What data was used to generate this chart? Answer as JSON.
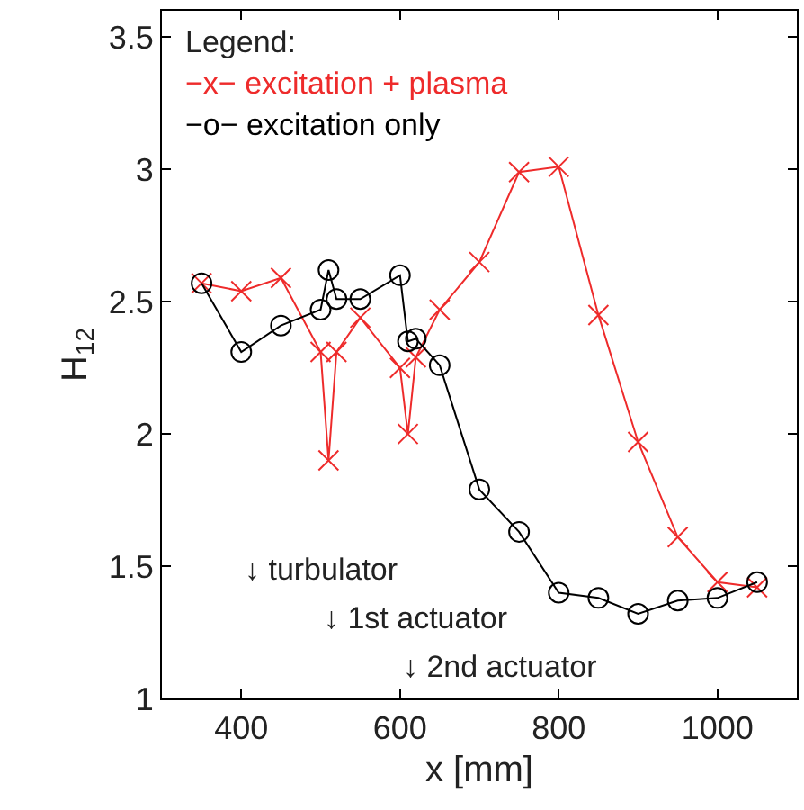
{
  "chart_data": {
    "type": "line",
    "xlabel": "x [mm]",
    "ylabel": "H$_{12}$",
    "legend_title": "Legend:",
    "legend": "top left",
    "series": [
      {
        "name": "−x− excitation + plasma",
        "color": "#ee2b2b",
        "marker": "cross",
        "x": [
          350,
          400,
          450,
          500,
          510,
          520,
          550,
          600,
          610,
          620,
          650,
          700,
          750,
          800,
          850,
          900,
          950,
          1000,
          1050
        ],
        "values": [
          2.57,
          2.54,
          2.59,
          2.31,
          1.9,
          2.31,
          2.44,
          2.25,
          2.0,
          2.29,
          2.47,
          2.65,
          2.99,
          3.01,
          2.45,
          1.97,
          1.61,
          1.44,
          1.42
        ]
      },
      {
        "name": "−o− excitation only",
        "color": "#000000",
        "marker": "circle",
        "x": [
          350,
          400,
          450,
          500,
          510,
          520,
          550,
          600,
          610,
          620,
          650,
          700,
          750,
          800,
          850,
          900,
          950,
          1000,
          1050
        ],
        "values": [
          2.57,
          2.31,
          2.41,
          2.47,
          2.62,
          2.51,
          2.51,
          2.6,
          2.35,
          2.36,
          2.26,
          1.79,
          1.63,
          1.4,
          1.38,
          1.32,
          1.37,
          1.38,
          1.44
        ]
      }
    ],
    "annotations": [
      "↓ turbulator",
      "↓ 1st actuator",
      "↓ 2nd actuator"
    ],
    "xlim": [
      300,
      1100
    ],
    "xticks": [
      400,
      600,
      800,
      1000
    ],
    "ylim": [
      1,
      3.6
    ],
    "yticks": [
      1,
      1.5,
      2,
      2.5,
      3,
      3.5
    ],
    "grid": false
  }
}
